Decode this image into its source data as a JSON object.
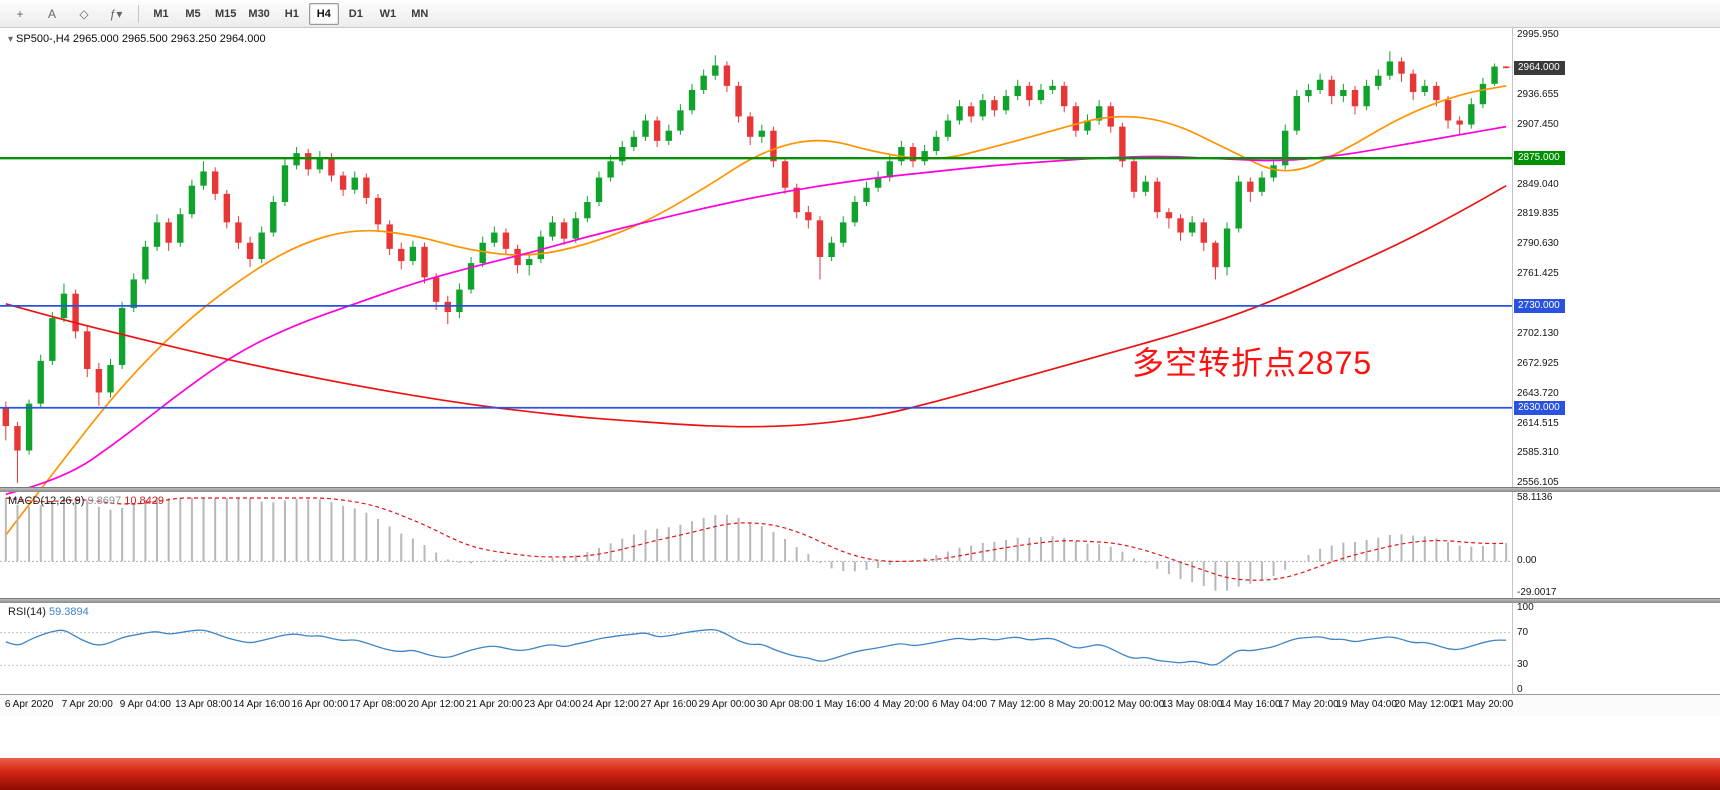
{
  "toolbar": {
    "icons": [
      {
        "name": "cursor-crosshair-icon",
        "glyph": "+"
      },
      {
        "name": "text-label-icon",
        "glyph": "A"
      },
      {
        "name": "shapes-icon",
        "glyph": "◇"
      },
      {
        "name": "indicators-dropdown-icon",
        "glyph": "ƒ▾"
      }
    ],
    "timeframes": [
      {
        "label": "M1",
        "active": false
      },
      {
        "label": "M5",
        "active": false
      },
      {
        "label": "M15",
        "active": false
      },
      {
        "label": "M30",
        "active": false
      },
      {
        "label": "H1",
        "active": false
      },
      {
        "label": "H4",
        "active": true
      },
      {
        "label": "D1",
        "active": false
      },
      {
        "label": "W1",
        "active": false
      },
      {
        "label": "MN",
        "active": false
      }
    ]
  },
  "chart": {
    "title": "SP500-,H4  2965.000 2965.500 2963.250 2964.000",
    "annotation": {
      "text": "多空转折点2875",
      "color": "#fe1111"
    },
    "price_axis": {
      "labels": [
        {
          "text": "2995.950",
          "value": 2995.95
        },
        {
          "text": "2936.655",
          "value": 2936.655
        },
        {
          "text": "2907.450",
          "value": 2907.45
        },
        {
          "text": "2849.040",
          "value": 2849.04
        },
        {
          "text": "2819.835",
          "value": 2819.835
        },
        {
          "text": "2790.630",
          "value": 2790.63
        },
        {
          "text": "2761.425",
          "value": 2761.425
        },
        {
          "text": "2702.130",
          "value": 2702.13
        },
        {
          "text": "2672.925",
          "value": 2672.925
        },
        {
          "text": "2643.720",
          "value": 2643.72
        },
        {
          "text": "2614.515",
          "value": 2614.515
        },
        {
          "text": "2585.310",
          "value": 2585.31
        },
        {
          "text": "2556.105",
          "value": 2556.105
        }
      ],
      "badges": [
        {
          "text": "2964.000",
          "value": 2964.0,
          "bg": "#3a3a3a"
        },
        {
          "text": "2875.000",
          "value": 2875.0,
          "bg": "#009000"
        },
        {
          "text": "2730.000",
          "value": 2730.0,
          "bg": "#2a52e0"
        },
        {
          "text": "2630.000",
          "value": 2630.0,
          "bg": "#2a52e0"
        }
      ]
    }
  },
  "chart_data": {
    "type": "candlestick",
    "symbol": "SP500-",
    "timeframe": "H4",
    "last_ohlc": {
      "open": "2965.000",
      "high": "2965.500",
      "low": "2963.250",
      "close": "2964.000"
    },
    "ylim": [
      2556.105,
      2995.95
    ],
    "colors": {
      "up": "#0fa32b",
      "down": "#e83535",
      "ma_fast": "#ff9300",
      "ma_mid": "#ff00dc",
      "ma_slow": "#ee1111",
      "macd_hist": "#b8b8b8",
      "macd_signal": "#e01818",
      "rsi": "#3d85c8"
    },
    "hlines": [
      {
        "price": 2875,
        "color": "#009000",
        "width": 2.4
      },
      {
        "price": 2730,
        "color": "#2a52e0",
        "width": 1.8
      },
      {
        "price": 2630,
        "color": "#2a52e0",
        "width": 1.8
      }
    ],
    "ohlc": [
      [
        2630,
        2636,
        2598,
        2612
      ],
      [
        2612,
        2616,
        2556,
        2588
      ],
      [
        2588,
        2638,
        2584,
        2634
      ],
      [
        2634,
        2682,
        2630,
        2676
      ],
      [
        2676,
        2724,
        2672,
        2718
      ],
      [
        2718,
        2752,
        2714,
        2742
      ],
      [
        2742,
        2746,
        2698,
        2705
      ],
      [
        2705,
        2710,
        2660,
        2668
      ],
      [
        2668,
        2674,
        2632,
        2645
      ],
      [
        2645,
        2678,
        2640,
        2672
      ],
      [
        2672,
        2734,
        2668,
        2728
      ],
      [
        2728,
        2762,
        2724,
        2756
      ],
      [
        2756,
        2794,
        2752,
        2788
      ],
      [
        2788,
        2820,
        2784,
        2812
      ],
      [
        2812,
        2816,
        2784,
        2792
      ],
      [
        2792,
        2826,
        2788,
        2820
      ],
      [
        2820,
        2854,
        2816,
        2848
      ],
      [
        2848,
        2872,
        2844,
        2862
      ],
      [
        2862,
        2866,
        2834,
        2840
      ],
      [
        2840,
        2844,
        2806,
        2812
      ],
      [
        2812,
        2818,
        2786,
        2792
      ],
      [
        2792,
        2798,
        2768,
        2776
      ],
      [
        2776,
        2808,
        2772,
        2802
      ],
      [
        2802,
        2838,
        2798,
        2832
      ],
      [
        2832,
        2874,
        2828,
        2868
      ],
      [
        2868,
        2886,
        2864,
        2880
      ],
      [
        2880,
        2884,
        2858,
        2864
      ],
      [
        2864,
        2882,
        2860,
        2876
      ],
      [
        2876,
        2880,
        2852,
        2858
      ],
      [
        2858,
        2862,
        2838,
        2844
      ],
      [
        2844,
        2862,
        2840,
        2856
      ],
      [
        2856,
        2860,
        2830,
        2836
      ],
      [
        2836,
        2840,
        2804,
        2810
      ],
      [
        2810,
        2814,
        2780,
        2786
      ],
      [
        2786,
        2792,
        2766,
        2774
      ],
      [
        2774,
        2794,
        2770,
        2788
      ],
      [
        2788,
        2792,
        2752,
        2758
      ],
      [
        2758,
        2762,
        2726,
        2734
      ],
      [
        2734,
        2740,
        2712,
        2724
      ],
      [
        2724,
        2752,
        2718,
        2746
      ],
      [
        2746,
        2778,
        2742,
        2772
      ],
      [
        2772,
        2798,
        2768,
        2792
      ],
      [
        2792,
        2808,
        2788,
        2802
      ],
      [
        2802,
        2806,
        2780,
        2786
      ],
      [
        2786,
        2790,
        2762,
        2770
      ],
      [
        2770,
        2782,
        2760,
        2776
      ],
      [
        2776,
        2804,
        2772,
        2798
      ],
      [
        2798,
        2818,
        2794,
        2812
      ],
      [
        2812,
        2816,
        2790,
        2796
      ],
      [
        2796,
        2822,
        2792,
        2816
      ],
      [
        2816,
        2838,
        2812,
        2832
      ],
      [
        2832,
        2862,
        2828,
        2856
      ],
      [
        2856,
        2878,
        2852,
        2872
      ],
      [
        2872,
        2892,
        2868,
        2886
      ],
      [
        2886,
        2902,
        2882,
        2896
      ],
      [
        2896,
        2918,
        2892,
        2912
      ],
      [
        2912,
        2916,
        2886,
        2892
      ],
      [
        2892,
        2908,
        2888,
        2902
      ],
      [
        2902,
        2928,
        2898,
        2922
      ],
      [
        2922,
        2948,
        2918,
        2942
      ],
      [
        2942,
        2962,
        2938,
        2956
      ],
      [
        2956,
        2976,
        2952,
        2966
      ],
      [
        2966,
        2970,
        2940,
        2946
      ],
      [
        2946,
        2950,
        2910,
        2916
      ],
      [
        2916,
        2920,
        2888,
        2896
      ],
      [
        2896,
        2908,
        2890,
        2902
      ],
      [
        2902,
        2906,
        2866,
        2872
      ],
      [
        2872,
        2876,
        2840,
        2846
      ],
      [
        2846,
        2850,
        2816,
        2822
      ],
      [
        2822,
        2828,
        2806,
        2814
      ],
      [
        2814,
        2818,
        2756,
        2778
      ],
      [
        2778,
        2798,
        2774,
        2792
      ],
      [
        2792,
        2818,
        2788,
        2812
      ],
      [
        2812,
        2838,
        2808,
        2832
      ],
      [
        2832,
        2852,
        2828,
        2846
      ],
      [
        2846,
        2862,
        2842,
        2856
      ],
      [
        2856,
        2878,
        2852,
        2872
      ],
      [
        2872,
        2892,
        2868,
        2886
      ],
      [
        2886,
        2890,
        2866,
        2872
      ],
      [
        2872,
        2888,
        2868,
        2882
      ],
      [
        2882,
        2902,
        2878,
        2896
      ],
      [
        2896,
        2918,
        2892,
        2912
      ],
      [
        2912,
        2932,
        2908,
        2926
      ],
      [
        2926,
        2930,
        2910,
        2916
      ],
      [
        2916,
        2938,
        2912,
        2932
      ],
      [
        2932,
        2936,
        2916,
        2922
      ],
      [
        2922,
        2942,
        2918,
        2936
      ],
      [
        2936,
        2952,
        2932,
        2946
      ],
      [
        2946,
        2950,
        2926,
        2932
      ],
      [
        2932,
        2948,
        2928,
        2942
      ],
      [
        2942,
        2952,
        2938,
        2946
      ],
      [
        2946,
        2950,
        2920,
        2926
      ],
      [
        2926,
        2930,
        2896,
        2902
      ],
      [
        2902,
        2918,
        2898,
        2912
      ],
      [
        2912,
        2932,
        2908,
        2926
      ],
      [
        2926,
        2930,
        2900,
        2906
      ],
      [
        2906,
        2910,
        2866,
        2872
      ],
      [
        2872,
        2876,
        2836,
        2842
      ],
      [
        2842,
        2858,
        2838,
        2852
      ],
      [
        2852,
        2856,
        2816,
        2822
      ],
      [
        2822,
        2826,
        2806,
        2816
      ],
      [
        2816,
        2820,
        2794,
        2802
      ],
      [
        2802,
        2818,
        2798,
        2812
      ],
      [
        2812,
        2816,
        2784,
        2792
      ],
      [
        2792,
        2794,
        2756,
        2768
      ],
      [
        2768,
        2812,
        2760,
        2806
      ],
      [
        2806,
        2858,
        2802,
        2852
      ],
      [
        2852,
        2856,
        2832,
        2842
      ],
      [
        2842,
        2862,
        2838,
        2856
      ],
      [
        2856,
        2874,
        2852,
        2868
      ],
      [
        2868,
        2908,
        2864,
        2902
      ],
      [
        2902,
        2942,
        2898,
        2936
      ],
      [
        2936,
        2948,
        2930,
        2942
      ],
      [
        2942,
        2958,
        2938,
        2952
      ],
      [
        2952,
        2956,
        2928,
        2936
      ],
      [
        2936,
        2948,
        2930,
        2942
      ],
      [
        2942,
        2946,
        2918,
        2926
      ],
      [
        2926,
        2952,
        2922,
        2946
      ],
      [
        2946,
        2962,
        2942,
        2956
      ],
      [
        2956,
        2980,
        2952,
        2970
      ],
      [
        2970,
        2974,
        2950,
        2958
      ],
      [
        2958,
        2962,
        2932,
        2940
      ],
      [
        2940,
        2952,
        2936,
        2946
      ],
      [
        2946,
        2950,
        2926,
        2932
      ],
      [
        2932,
        2936,
        2904,
        2912
      ],
      [
        2912,
        2916,
        2898,
        2908
      ],
      [
        2908,
        2934,
        2904,
        2928
      ],
      [
        2928,
        2954,
        2924,
        2948
      ],
      [
        2948,
        2968,
        2946,
        2965
      ],
      [
        2965,
        2965.5,
        2963.25,
        2964
      ]
    ],
    "ma_lines": [
      {
        "name": "ma-fast-orange",
        "color": "#ff9300",
        "points": [
          [
            0,
            2505
          ],
          [
            5,
            2580
          ],
          [
            10,
            2652
          ],
          [
            15,
            2710
          ],
          [
            20,
            2755
          ],
          [
            25,
            2790
          ],
          [
            30,
            2806
          ],
          [
            35,
            2800
          ],
          [
            40,
            2784
          ],
          [
            45,
            2778
          ],
          [
            50,
            2790
          ],
          [
            55,
            2812
          ],
          [
            60,
            2845
          ],
          [
            65,
            2882
          ],
          [
            70,
            2896
          ],
          [
            75,
            2880
          ],
          [
            80,
            2872
          ],
          [
            85,
            2886
          ],
          [
            90,
            2902
          ],
          [
            95,
            2918
          ],
          [
            100,
            2912
          ],
          [
            105,
            2884
          ],
          [
            110,
            2856
          ],
          [
            115,
            2882
          ],
          [
            120,
            2916
          ],
          [
            125,
            2938
          ],
          [
            129,
            2946
          ]
        ]
      },
      {
        "name": "ma-mid-magenta",
        "color": "#ff00dc",
        "points": [
          [
            0,
            2545
          ],
          [
            5,
            2560
          ],
          [
            10,
            2600
          ],
          [
            15,
            2645
          ],
          [
            20,
            2685
          ],
          [
            25,
            2712
          ],
          [
            30,
            2732
          ],
          [
            35,
            2752
          ],
          [
            40,
            2768
          ],
          [
            45,
            2782
          ],
          [
            50,
            2798
          ],
          [
            55,
            2812
          ],
          [
            60,
            2826
          ],
          [
            65,
            2838
          ],
          [
            70,
            2848
          ],
          [
            75,
            2856
          ],
          [
            80,
            2862
          ],
          [
            85,
            2868
          ],
          [
            90,
            2872
          ],
          [
            95,
            2876
          ],
          [
            100,
            2877
          ],
          [
            105,
            2874
          ],
          [
            110,
            2872
          ],
          [
            115,
            2878
          ],
          [
            120,
            2888
          ],
          [
            125,
            2898
          ],
          [
            129,
            2906
          ]
        ]
      },
      {
        "name": "ma-slow-red",
        "color": "#ee1111",
        "points": [
          [
            0,
            2732
          ],
          [
            5,
            2716
          ],
          [
            10,
            2702
          ],
          [
            15,
            2688
          ],
          [
            20,
            2675
          ],
          [
            25,
            2663
          ],
          [
            30,
            2652
          ],
          [
            35,
            2642
          ],
          [
            40,
            2633
          ],
          [
            45,
            2626
          ],
          [
            50,
            2620
          ],
          [
            55,
            2616
          ],
          [
            60,
            2612
          ],
          [
            65,
            2611
          ],
          [
            70,
            2614
          ],
          [
            75,
            2622
          ],
          [
            80,
            2636
          ],
          [
            85,
            2652
          ],
          [
            90,
            2668
          ],
          [
            95,
            2684
          ],
          [
            100,
            2700
          ],
          [
            105,
            2718
          ],
          [
            110,
            2740
          ],
          [
            115,
            2766
          ],
          [
            120,
            2792
          ],
          [
            125,
            2822
          ],
          [
            129,
            2848
          ]
        ]
      }
    ],
    "indicators": {
      "macd": {
        "label": "MACD(12,26,9)",
        "value_main": "9.8697",
        "value_signal": "10.8429",
        "seed_offset": 58.1136,
        "range": [
          -29.0017,
          58.1136
        ],
        "axis": [
          {
            "text": "58.1136",
            "value": 58.1136
          },
          {
            "text": "0.00",
            "value": 0
          },
          {
            "text": "-29.0017",
            "value": -29.0017
          }
        ]
      },
      "rsi": {
        "label": "RSI(14)",
        "value": "59.3894",
        "levels": [
          70,
          30
        ],
        "range": [
          0,
          100
        ],
        "axis": [
          {
            "text": "100",
            "value": 100
          },
          {
            "text": "70",
            "value": 70
          },
          {
            "text": "30",
            "value": 30
          },
          {
            "text": "0",
            "value": 0
          }
        ]
      }
    },
    "time_labels": [
      "6 Apr 2020",
      "7 Apr 20:00",
      "9 Apr 04:00",
      "13 Apr 08:00",
      "14 Apr 16:00",
      "16 Apr 00:00",
      "17 Apr 08:00",
      "20 Apr 12:00",
      "21 Apr 20:00",
      "23 Apr 04:00",
      "24 Apr 12:00",
      "27 Apr 16:00",
      "29 Apr 00:00",
      "30 Apr 08:00",
      "1 May 16:00",
      "4 May 20:00",
      "6 May 04:00",
      "7 May 12:00",
      "8 May 20:00",
      "12 May 00:00",
      "13 May 08:00",
      "14 May 16:00",
      "17 May 20:00",
      "19 May 04:00",
      "20 May 12:00",
      "21 May 20:00"
    ]
  }
}
